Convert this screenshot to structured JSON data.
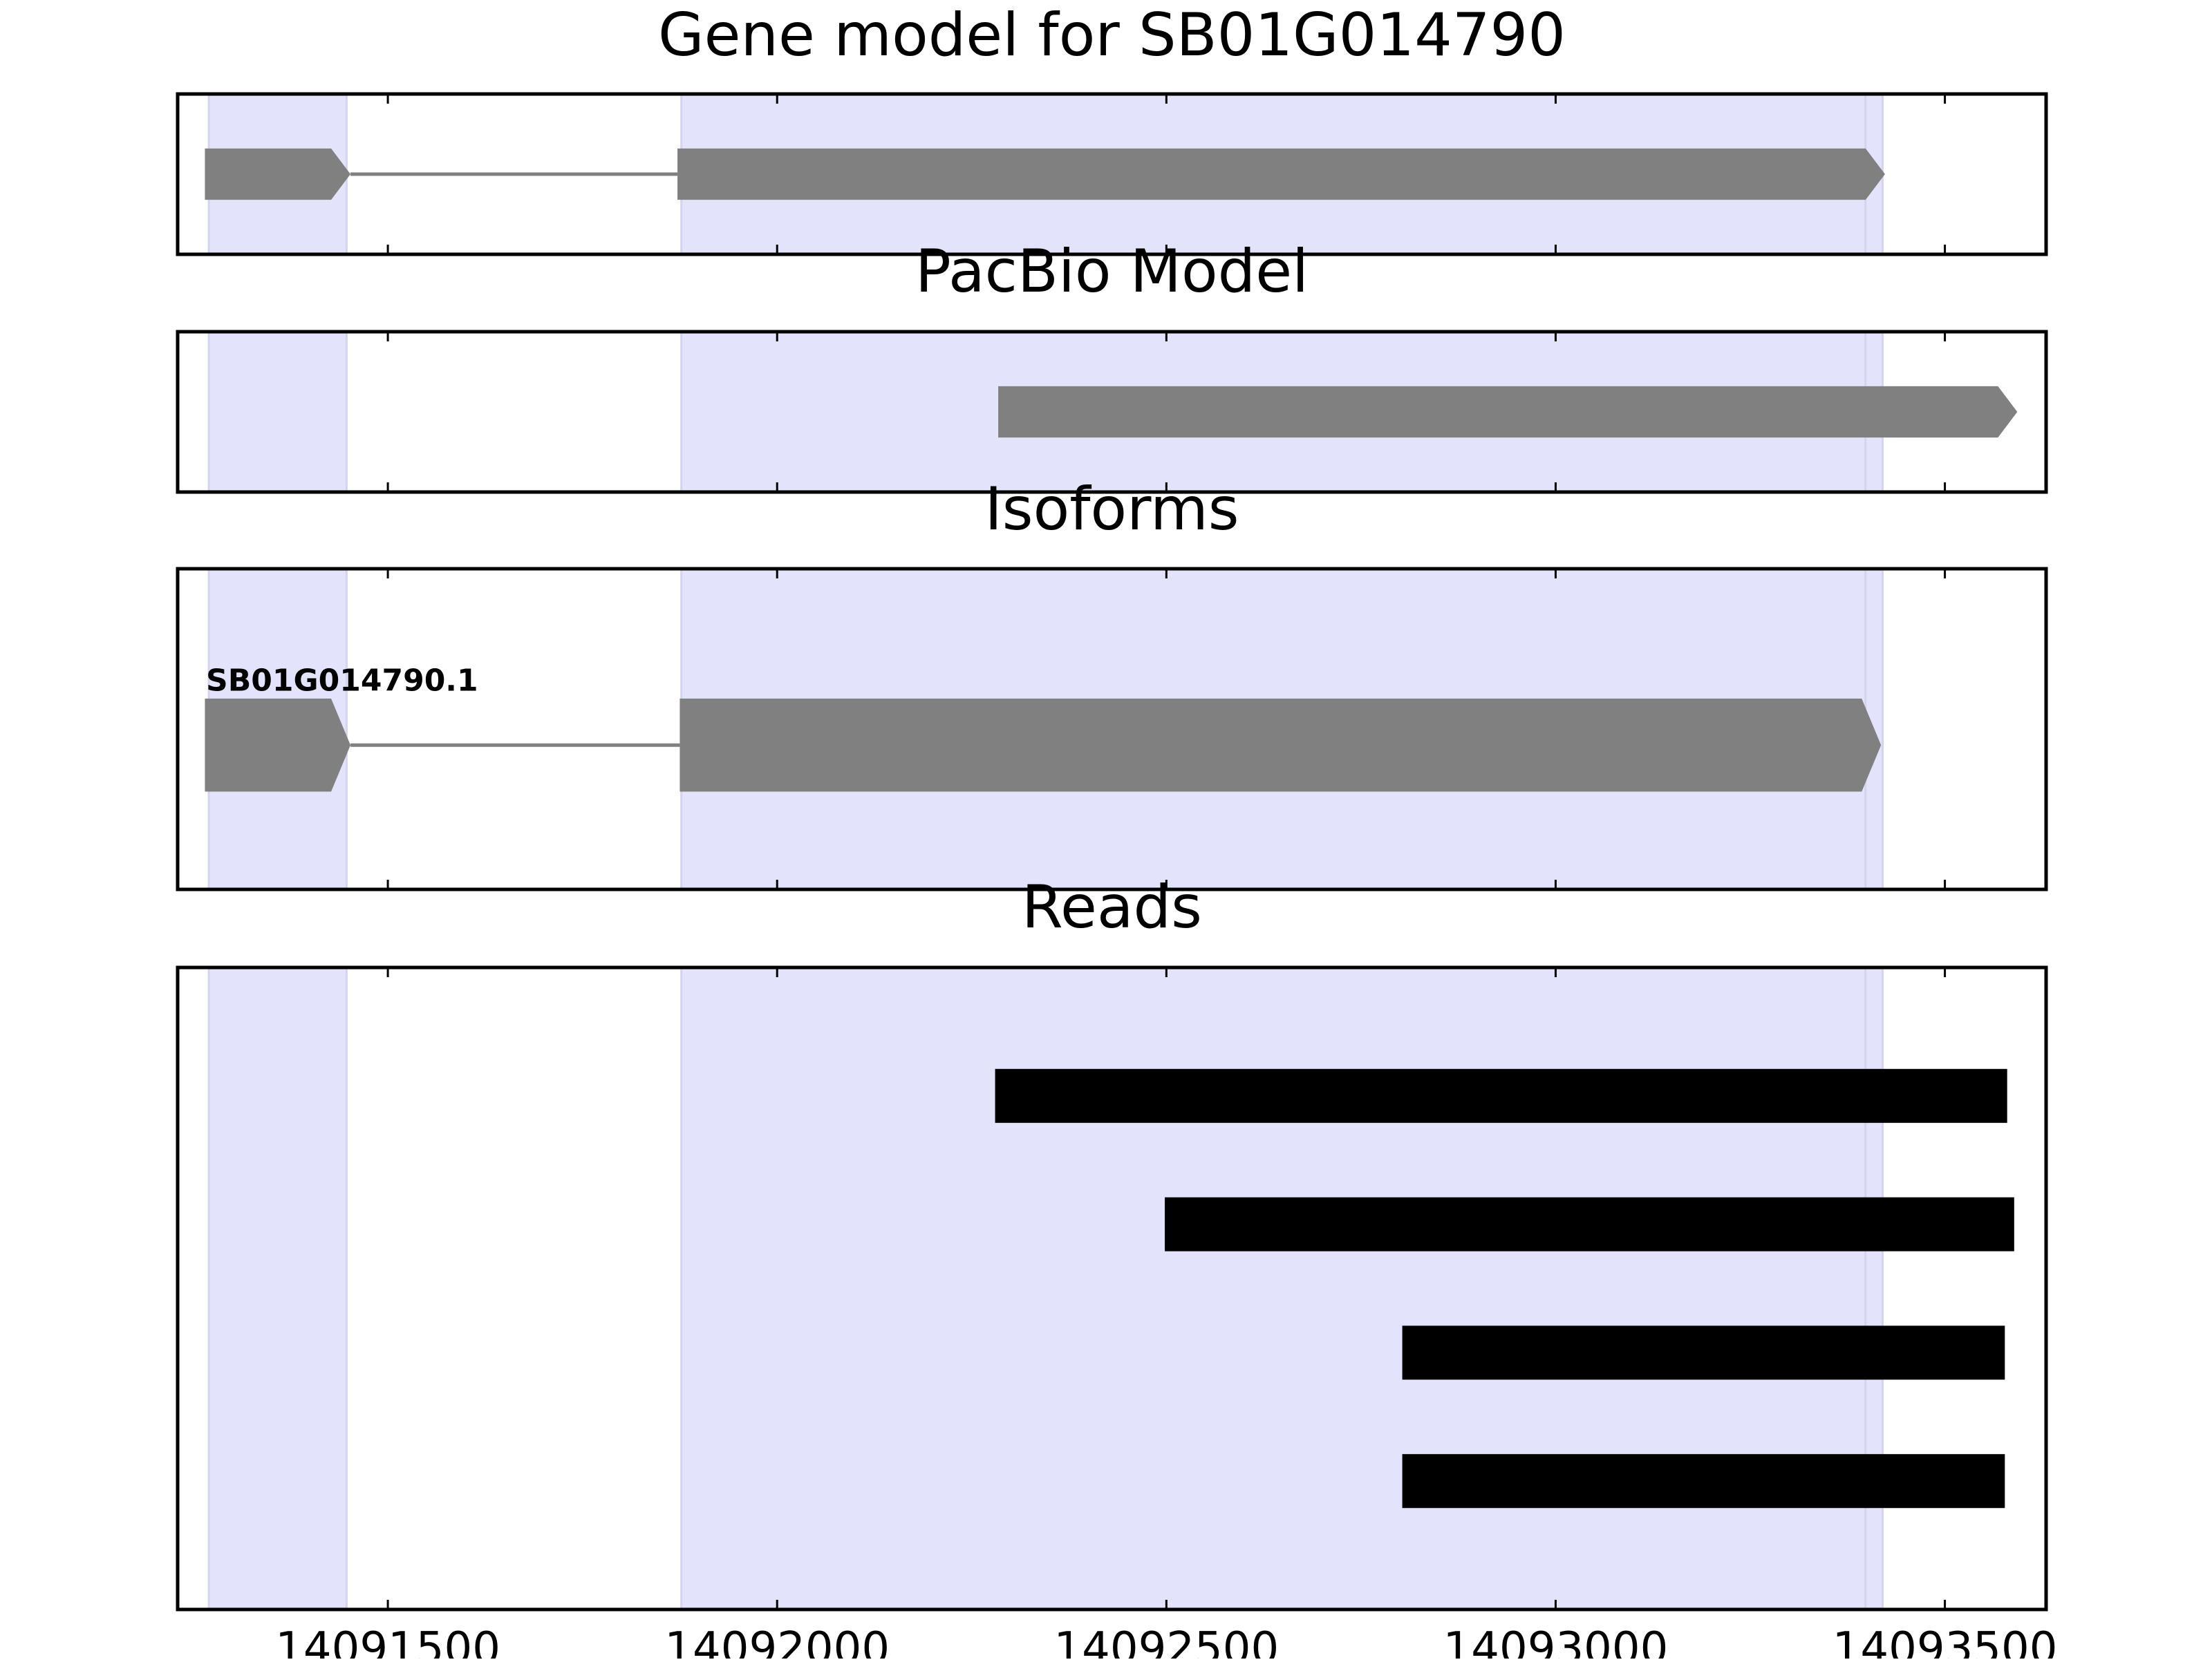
{
  "chart_data": {
    "type": "gene-model",
    "x_axis": {
      "range": [
        14091230,
        14093630
      ],
      "ticks": [
        14091500,
        14092000,
        14092500,
        14093000,
        14093500
      ],
      "tick_labels": [
        "14091500",
        "14092000",
        "14092500",
        "14093000",
        "14093500"
      ]
    },
    "exon_highlights": [
      {
        "start": 14091270,
        "end": 14091447
      },
      {
        "start": 14091877,
        "end": 14093398
      },
      {
        "start": 14093398,
        "end": 14093420
      }
    ],
    "colors": {
      "highlight": "#e3e3fc",
      "highlight_edge": "#d4d4ee",
      "feature": "#808080",
      "intron": "#808080",
      "read": "#000000"
    },
    "panels": [
      {
        "key": "gene_model",
        "title": "Gene model for SB01G014790",
        "features": [
          {
            "kind": "arrow",
            "start": 14091265,
            "end": 14091452,
            "y": 0.5,
            "h": 0.32
          },
          {
            "kind": "line",
            "start": 14091452,
            "end": 14091872,
            "y": 0.5
          },
          {
            "kind": "arrow",
            "start": 14091872,
            "end": 14093423,
            "y": 0.5,
            "h": 0.32
          }
        ]
      },
      {
        "key": "pacbio",
        "title": "PacBio Model",
        "features": [
          {
            "kind": "arrow",
            "start": 14092284,
            "end": 14093593,
            "y": 0.5,
            "h": 0.32
          }
        ]
      },
      {
        "key": "isoforms",
        "title": "Isoforms",
        "isoform_label": "SB01G014790.1",
        "features": [
          {
            "kind": "arrow",
            "start": 14091265,
            "end": 14091452,
            "y": 0.55,
            "h": 0.29
          },
          {
            "kind": "line",
            "start": 14091452,
            "end": 14091875,
            "y": 0.55
          },
          {
            "kind": "arrow",
            "start": 14091875,
            "end": 14093418,
            "y": 0.55,
            "h": 0.29
          }
        ]
      },
      {
        "key": "reads",
        "title": "Reads",
        "features": [
          {
            "kind": "read",
            "start": 14092280,
            "end": 14093580,
            "y": 0.2,
            "h": 0.084
          },
          {
            "kind": "read",
            "start": 14092498,
            "end": 14093589,
            "y": 0.4,
            "h": 0.084
          },
          {
            "kind": "read",
            "start": 14092803,
            "end": 14093577,
            "y": 0.6,
            "h": 0.084
          },
          {
            "kind": "read",
            "start": 14092803,
            "end": 14093577,
            "y": 0.8,
            "h": 0.084
          }
        ]
      }
    ]
  }
}
